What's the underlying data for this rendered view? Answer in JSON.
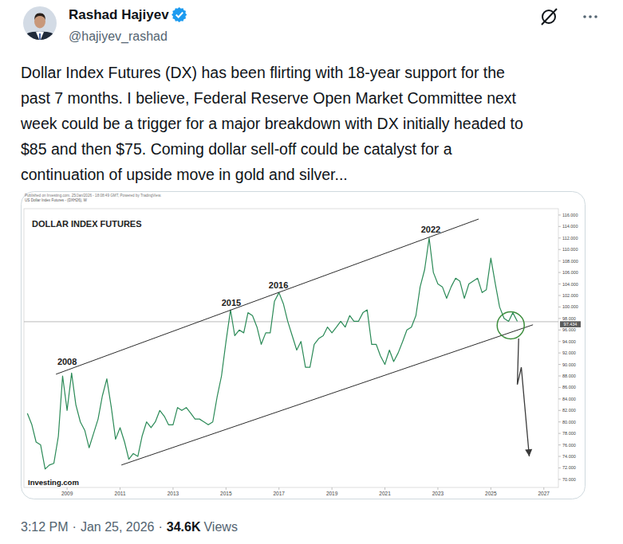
{
  "post": {
    "author": {
      "name": "Rashad Hajiyev",
      "handle": "@hajiyev_rashad",
      "verified": true
    },
    "text_lines": [
      "Dollar Index Futures (DX) has been flirting with 18-year support for the",
      "past 7 months. I believe, Federal Reserve Open Market Committee next",
      "week could be a trigger for a major breakdown with DX initially headed to",
      "$85 and then $75. Coming dollar sell-off could be catalyst for a",
      "continuation of upside move in gold and silver..."
    ],
    "time": "3:12 PM",
    "separator": "·",
    "date": "Jan 25, 2026",
    "views": "34.6K",
    "views_label": "Views"
  },
  "chart_data": {
    "type": "line",
    "title": "DOLLAR INDEX FUTURES",
    "subtitle": "US Dollar Index Futures - (DXH26), W",
    "source": "Published on Investing.com, 25/Jan/2026 - 18:08:49 GMT, Powered by TradingView.",
    "logo": "Investing.com",
    "color": "#2b8a57",
    "grid": false,
    "x": [
      2007.5,
      2007.67,
      2007.83,
      2008,
      2008.17,
      2008.33,
      2008.5,
      2008.67,
      2008.83,
      2009,
      2009.17,
      2009.33,
      2009.5,
      2009.67,
      2009.83,
      2010,
      2010.17,
      2010.33,
      2010.5,
      2010.67,
      2010.83,
      2011,
      2011.17,
      2011.33,
      2011.5,
      2011.67,
      2011.83,
      2012,
      2012.17,
      2012.33,
      2012.5,
      2012.67,
      2012.83,
      2013,
      2013.17,
      2013.33,
      2013.5,
      2013.67,
      2013.83,
      2014,
      2014.17,
      2014.33,
      2014.5,
      2014.67,
      2014.83,
      2015,
      2015.17,
      2015.33,
      2015.5,
      2015.67,
      2015.83,
      2016,
      2016.17,
      2016.33,
      2016.5,
      2016.67,
      2016.83,
      2017,
      2017.17,
      2017.33,
      2017.5,
      2017.67,
      2017.83,
      2018,
      2018.17,
      2018.33,
      2018.5,
      2018.67,
      2018.83,
      2019,
      2019.17,
      2019.33,
      2019.5,
      2019.67,
      2019.83,
      2020,
      2020.17,
      2020.33,
      2020.5,
      2020.67,
      2020.83,
      2021,
      2021.17,
      2021.33,
      2021.5,
      2021.67,
      2021.83,
      2022,
      2022.17,
      2022.33,
      2022.5,
      2022.67,
      2022.83,
      2023,
      2023.17,
      2023.33,
      2023.5,
      2023.67,
      2023.83,
      2024,
      2024.17,
      2024.33,
      2024.5,
      2024.67,
      2024.83,
      2025,
      2025.17,
      2025.33,
      2025.5,
      2025.67,
      2025.83,
      2026
    ],
    "values": [
      81.5,
      79.5,
      76.5,
      76.0,
      71.8,
      72.5,
      72.8,
      77.5,
      88.0,
      82.0,
      88.5,
      83.0,
      80.0,
      78.5,
      75.5,
      78.0,
      80.5,
      84.5,
      87.5,
      82.5,
      77.0,
      79.0,
      76.5,
      73.5,
      74.5,
      74.0,
      77.5,
      80.0,
      79.0,
      80.0,
      82.0,
      81.0,
      79.5,
      79.5,
      82.5,
      82.0,
      82.5,
      81.5,
      80.5,
      80.5,
      80.0,
      79.5,
      80.0,
      84.5,
      88.0,
      94.0,
      99.5,
      95.0,
      96.0,
      95.5,
      99.0,
      98.5,
      96.5,
      93.5,
      95.5,
      95.5,
      101.0,
      102.5,
      100.5,
      97.5,
      95.0,
      92.5,
      94.0,
      89.5,
      89.5,
      93.5,
      94.5,
      95.0,
      96.5,
      95.5,
      96.5,
      97.5,
      96.5,
      98.5,
      97.5,
      97.5,
      99.0,
      99.5,
      93.5,
      93.5,
      91.5,
      90.0,
      92.5,
      90.5,
      92.0,
      94.0,
      96.0,
      96.5,
      98.5,
      103.5,
      106.5,
      112.0,
      106.0,
      104.0,
      103.5,
      101.5,
      103.5,
      105.0,
      104.5,
      101.5,
      104.0,
      104.5,
      105.0,
      102.5,
      103.0,
      108.5,
      104.0,
      100.0,
      98.0,
      97.5,
      99.0,
      97.5
    ],
    "xlim": [
      2007.37,
      2027.55
    ],
    "xticks": [
      2009,
      2011,
      2013,
      2015,
      2017,
      2019,
      2021,
      2023,
      2025,
      2027
    ],
    "ylim": [
      68.6,
      117.1
    ],
    "yticks": [
      {
        "value": 70,
        "label": "70.000"
      },
      {
        "value": 72,
        "label": "72.000"
      },
      {
        "value": 74,
        "label": "74.000"
      },
      {
        "value": 76,
        "label": "76.000"
      },
      {
        "value": 78,
        "label": "78.000"
      },
      {
        "value": 80,
        "label": "80.000"
      },
      {
        "value": 82,
        "label": "82.000"
      },
      {
        "value": 84,
        "label": "84.000"
      },
      {
        "value": 86,
        "label": "86.000"
      },
      {
        "value": 88,
        "label": "88.000"
      },
      {
        "value": 90,
        "label": "90.000"
      },
      {
        "value": 92,
        "label": "92.000"
      },
      {
        "value": 94,
        "label": "94.000"
      },
      {
        "value": 96,
        "label": "96.000"
      },
      {
        "value": 98,
        "label": "98.000"
      },
      {
        "value": 100,
        "label": "100.000"
      },
      {
        "value": 102,
        "label": "102.000"
      },
      {
        "value": 104,
        "label": "104.000"
      },
      {
        "value": 106,
        "label": "106.000"
      },
      {
        "value": 108,
        "label": "108.000"
      },
      {
        "value": 110,
        "label": "110.000"
      },
      {
        "value": 112,
        "label": "112.000"
      },
      {
        "value": 114,
        "label": "114.000"
      },
      {
        "value": 116,
        "label": "116.000"
      }
    ],
    "annotations": [
      {
        "shape": "line",
        "x": [
          2008.58,
          2024.54
        ],
        "y": [
          88.3,
          115.3
        ]
      },
      {
        "shape": "line",
        "x": [
          2011.05,
          2026.59
        ],
        "y": [
          72.5,
          96.9
        ]
      },
      {
        "shape": "text",
        "text": "2008",
        "x": 2009.0,
        "y": 90.0
      },
      {
        "shape": "text",
        "text": "2015",
        "x": 2015.2,
        "y": 100.2
      },
      {
        "shape": "text",
        "text": "2016",
        "x": 2016.98,
        "y": 103.2
      },
      {
        "shape": "text",
        "text": "2022",
        "x": 2022.73,
        "y": 113.0
      },
      {
        "shape": "price",
        "text": "97.434",
        "y": 97.434
      },
      {
        "shape": "circle",
        "x": 2025.75,
        "y": 96.8
      },
      {
        "shape": "arrow",
        "x": [
          2026.05,
          2026.0,
          2026.15,
          2026.45
        ],
        "y": [
          94.5,
          86.5,
          89.5,
          74.0
        ]
      }
    ]
  }
}
